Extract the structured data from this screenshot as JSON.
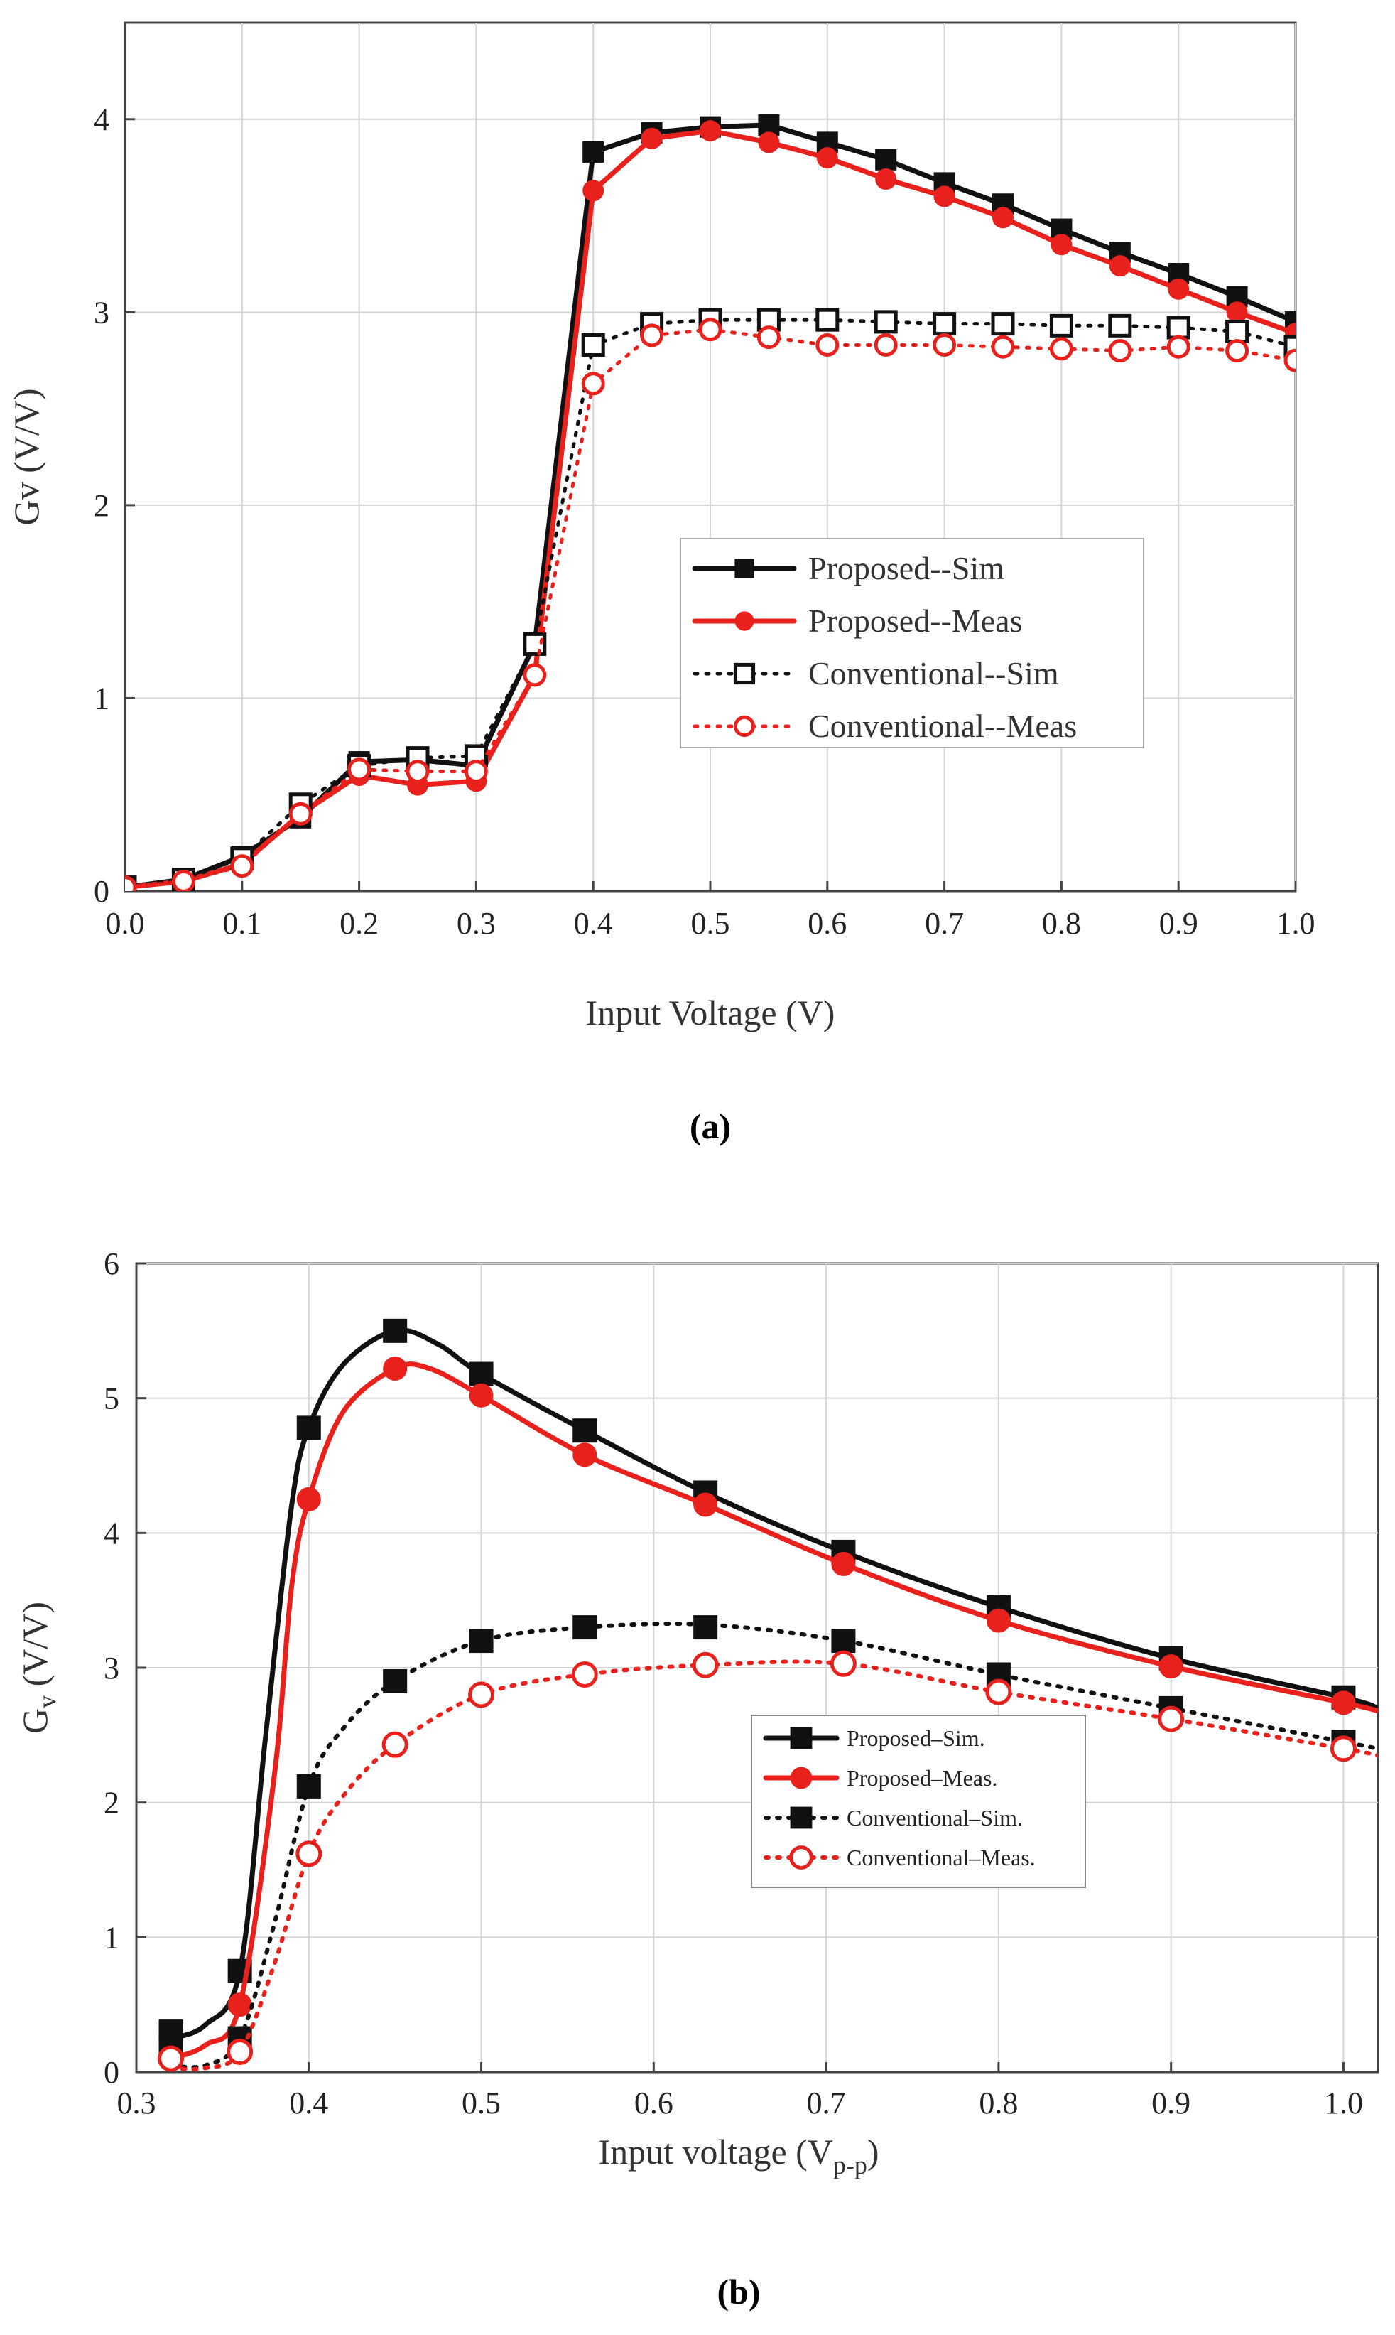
{
  "figure": {
    "caption_a": "(a)",
    "caption_b": "(b)"
  },
  "colors": {
    "black": "#111111",
    "red": "#e8211c",
    "grid": "#d4d4d4"
  },
  "chart_data": [
    {
      "id": "a",
      "type": "line",
      "xlabel": "Input Voltage (V)",
      "ylabel": "Gv (V/V)",
      "xlim": [
        0.0,
        1.0
      ],
      "ylim": [
        0,
        4.5
      ],
      "xticks": [
        0.0,
        0.1,
        0.2,
        0.3,
        0.4,
        0.5,
        0.6,
        0.7,
        0.8,
        0.9,
        1.0
      ],
      "xtick_labels": [
        "0.0",
        "0.1",
        "0.2",
        "0.3",
        "0.4",
        "0.5",
        "0.6",
        "0.7",
        "0.8",
        "0.9",
        "1.0"
      ],
      "yticks": [
        0,
        1,
        2,
        3,
        4
      ],
      "ytick_labels": [
        "0",
        "1",
        "2",
        "3",
        "4"
      ],
      "grid": true,
      "legend_position": "center-right",
      "series": [
        {
          "name": "Proposed--Sim",
          "color": "#111111",
          "dash": false,
          "marker": "square-filled",
          "x": [
            0.0,
            0.05,
            0.1,
            0.15,
            0.2,
            0.25,
            0.3,
            0.35,
            0.4,
            0.45,
            0.5,
            0.55,
            0.6,
            0.65,
            0.7,
            0.75,
            0.8,
            0.85,
            0.9,
            0.95,
            1.0
          ],
          "y": [
            0.02,
            0.06,
            0.18,
            0.38,
            0.67,
            0.68,
            0.65,
            1.28,
            3.83,
            3.93,
            3.96,
            3.97,
            3.88,
            3.79,
            3.67,
            3.56,
            3.43,
            3.31,
            3.2,
            3.08,
            2.95
          ]
        },
        {
          "name": "Proposed--Meas",
          "color": "#e8211c",
          "dash": false,
          "marker": "circle-filled",
          "x": [
            0.0,
            0.05,
            0.1,
            0.15,
            0.2,
            0.25,
            0.3,
            0.35,
            0.4,
            0.45,
            0.5,
            0.55,
            0.6,
            0.65,
            0.7,
            0.75,
            0.8,
            0.85,
            0.9,
            0.95,
            1.0
          ],
          "y": [
            0.02,
            0.05,
            0.14,
            0.4,
            0.6,
            0.55,
            0.57,
            1.12,
            3.63,
            3.9,
            3.94,
            3.88,
            3.8,
            3.69,
            3.6,
            3.49,
            3.35,
            3.24,
            3.12,
            3.0,
            2.89
          ]
        },
        {
          "name": "Conventional--Sim",
          "color": "#111111",
          "dash": true,
          "marker": "square-open",
          "x": [
            0.0,
            0.05,
            0.1,
            0.15,
            0.2,
            0.25,
            0.3,
            0.35,
            0.4,
            0.45,
            0.5,
            0.55,
            0.6,
            0.65,
            0.7,
            0.75,
            0.8,
            0.85,
            0.9,
            0.95,
            1.0
          ],
          "y": [
            0.02,
            0.06,
            0.17,
            0.45,
            0.65,
            0.69,
            0.7,
            1.28,
            2.83,
            2.94,
            2.96,
            2.96,
            2.96,
            2.95,
            2.94,
            2.94,
            2.93,
            2.93,
            2.92,
            2.9,
            2.82
          ]
        },
        {
          "name": "Conventional--Meas",
          "color": "#e8211c",
          "dash": true,
          "marker": "circle-open",
          "x": [
            0.0,
            0.05,
            0.1,
            0.15,
            0.2,
            0.25,
            0.3,
            0.35,
            0.4,
            0.45,
            0.5,
            0.55,
            0.6,
            0.65,
            0.7,
            0.75,
            0.8,
            0.85,
            0.9,
            0.95,
            1.0
          ],
          "y": [
            0.02,
            0.05,
            0.13,
            0.4,
            0.63,
            0.62,
            0.62,
            1.12,
            2.63,
            2.88,
            2.91,
            2.87,
            2.83,
            2.83,
            2.83,
            2.82,
            2.81,
            2.8,
            2.82,
            2.8,
            2.75
          ]
        }
      ]
    },
    {
      "id": "b",
      "type": "line",
      "xlabel": "Input voltage (V",
      "xlabel_sub": "p-p",
      "xlabel_end": ")",
      "ylabel": "G",
      "ylabel_sub": "v",
      "ylabel_end": " (V/V)",
      "xlim": [
        0.3,
        1.02
      ],
      "ylim": [
        0,
        6
      ],
      "xticks": [
        0.3,
        0.4,
        0.5,
        0.6,
        0.7,
        0.8,
        0.9,
        1.0
      ],
      "xtick_labels": [
        "0.3",
        "0.4",
        "0.5",
        "0.6",
        "0.7",
        "0.8",
        "0.9",
        "1.0"
      ],
      "yticks": [
        0,
        1,
        2,
        3,
        4,
        5,
        6
      ],
      "ytick_labels": [
        "0",
        "1",
        "2",
        "3",
        "4",
        "5",
        "6"
      ],
      "grid": true,
      "legend_position": "lower-center",
      "series": [
        {
          "name": "Proposed–Sim.",
          "color": "#111111",
          "dash": false,
          "marker": "square-filled",
          "x": [
            0.32,
            0.36,
            0.4,
            0.45,
            0.5,
            0.56,
            0.63,
            0.71,
            0.8,
            0.9,
            1.0
          ],
          "y": [
            0.3,
            0.75,
            4.78,
            5.5,
            5.18,
            4.76,
            4.3,
            3.86,
            3.45,
            3.07,
            2.78
          ],
          "curve": [
            [
              0.32,
              0.25
            ],
            [
              0.34,
              0.35
            ],
            [
              0.36,
              0.75
            ],
            [
              0.375,
              2.5
            ],
            [
              0.39,
              4.2
            ],
            [
              0.4,
              4.78
            ],
            [
              0.42,
              5.25
            ],
            [
              0.45,
              5.5
            ],
            [
              0.475,
              5.4
            ],
            [
              0.5,
              5.18
            ],
            [
              0.56,
              4.76
            ],
            [
              0.63,
              4.3
            ],
            [
              0.71,
              3.86
            ],
            [
              0.8,
              3.45
            ],
            [
              0.9,
              3.07
            ],
            [
              1.0,
              2.78
            ],
            [
              1.02,
              2.7
            ]
          ]
        },
        {
          "name": "Proposed–Meas.",
          "color": "#e8211c",
          "dash": false,
          "marker": "circle-filled",
          "x": [
            0.32,
            0.36,
            0.4,
            0.45,
            0.5,
            0.56,
            0.63,
            0.71,
            0.8,
            0.9,
            1.0
          ],
          "y": [
            0.15,
            0.5,
            4.25,
            5.22,
            5.02,
            4.58,
            4.21,
            3.77,
            3.35,
            3.01,
            2.74
          ],
          "curve": [
            [
              0.32,
              0.1
            ],
            [
              0.34,
              0.2
            ],
            [
              0.36,
              0.5
            ],
            [
              0.38,
              2.2
            ],
            [
              0.39,
              3.6
            ],
            [
              0.4,
              4.25
            ],
            [
              0.42,
              4.9
            ],
            [
              0.45,
              5.22
            ],
            [
              0.47,
              5.22
            ],
            [
              0.5,
              5.02
            ],
            [
              0.56,
              4.58
            ],
            [
              0.63,
              4.21
            ],
            [
              0.71,
              3.77
            ],
            [
              0.8,
              3.35
            ],
            [
              0.9,
              3.01
            ],
            [
              1.0,
              2.74
            ],
            [
              1.02,
              2.68
            ]
          ]
        },
        {
          "name": "Conventional–Sim.",
          "color": "#111111",
          "dash": true,
          "marker": "square-filled",
          "x": [
            0.32,
            0.36,
            0.4,
            0.45,
            0.5,
            0.56,
            0.63,
            0.71,
            0.8,
            0.9,
            1.0
          ],
          "y": [
            0.2,
            0.25,
            2.12,
            2.9,
            3.2,
            3.3,
            3.3,
            3.2,
            2.95,
            2.7,
            2.45
          ],
          "curve": [
            [
              0.32,
              0.05
            ],
            [
              0.34,
              0.05
            ],
            [
              0.36,
              0.25
            ],
            [
              0.38,
              1.1
            ],
            [
              0.4,
              2.12
            ],
            [
              0.42,
              2.55
            ],
            [
              0.45,
              2.9
            ],
            [
              0.5,
              3.2
            ],
            [
              0.56,
              3.3
            ],
            [
              0.63,
              3.32
            ],
            [
              0.71,
              3.2
            ],
            [
              0.8,
              2.95
            ],
            [
              0.9,
              2.7
            ],
            [
              1.0,
              2.45
            ],
            [
              1.02,
              2.4
            ]
          ]
        },
        {
          "name": "Conventional–Meas.",
          "color": "#e8211c",
          "dash": true,
          "marker": "circle-open",
          "x": [
            0.32,
            0.36,
            0.4,
            0.45,
            0.5,
            0.56,
            0.63,
            0.71,
            0.8,
            0.9,
            1.0
          ],
          "y": [
            0.1,
            0.15,
            1.62,
            2.43,
            2.8,
            2.95,
            3.02,
            3.03,
            2.82,
            2.62,
            2.4
          ],
          "curve": [
            [
              0.32,
              0.03
            ],
            [
              0.34,
              0.03
            ],
            [
              0.36,
              0.15
            ],
            [
              0.38,
              0.8
            ],
            [
              0.4,
              1.62
            ],
            [
              0.42,
              2.05
            ],
            [
              0.45,
              2.43
            ],
            [
              0.5,
              2.8
            ],
            [
              0.56,
              2.95
            ],
            [
              0.63,
              3.02
            ],
            [
              0.71,
              3.03
            ],
            [
              0.8,
              2.82
            ],
            [
              0.9,
              2.62
            ],
            [
              1.0,
              2.4
            ],
            [
              1.02,
              2.35
            ]
          ]
        }
      ]
    }
  ]
}
